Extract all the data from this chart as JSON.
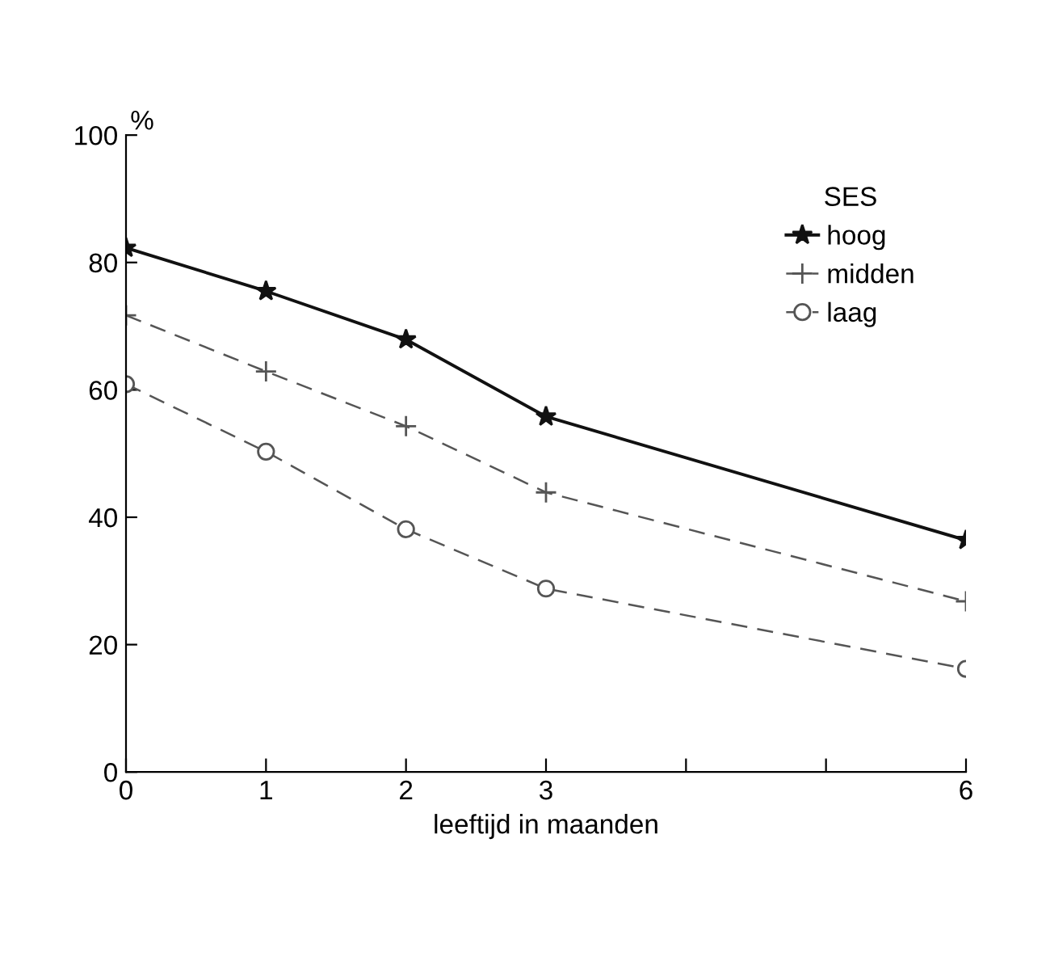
{
  "chart_data": {
    "type": "line",
    "xlabel": "leeftijd in maanden",
    "ylabel": "%",
    "legend_title": "SES",
    "legend": "top right",
    "grid": false,
    "x": [
      0,
      1,
      2,
      3,
      6
    ],
    "xlim": [
      0,
      6
    ],
    "xticks": [
      0,
      1,
      2,
      3,
      {
        "value": 4,
        "label": null
      },
      {
        "value": 5,
        "label": null
      },
      6
    ],
    "ylim": [
      0,
      100
    ],
    "yticks": [
      0,
      20,
      40,
      60,
      80,
      100
    ],
    "series": [
      {
        "name": "hoog",
        "color": "#111111",
        "marker": "star",
        "line_style": "solid",
        "values": [
          82.3,
          75.5,
          67.9,
          55.8,
          36.4
        ]
      },
      {
        "name": "midden",
        "color": "#555555",
        "marker": "cross",
        "line_style": "dashed",
        "values": [
          71.7,
          62.9,
          54.3,
          43.9,
          26.8
        ]
      },
      {
        "name": "laag",
        "color": "#555555",
        "marker": "circle",
        "line_style": "dashed",
        "values": [
          60.9,
          50.3,
          38.1,
          28.8,
          16.2
        ]
      }
    ]
  }
}
